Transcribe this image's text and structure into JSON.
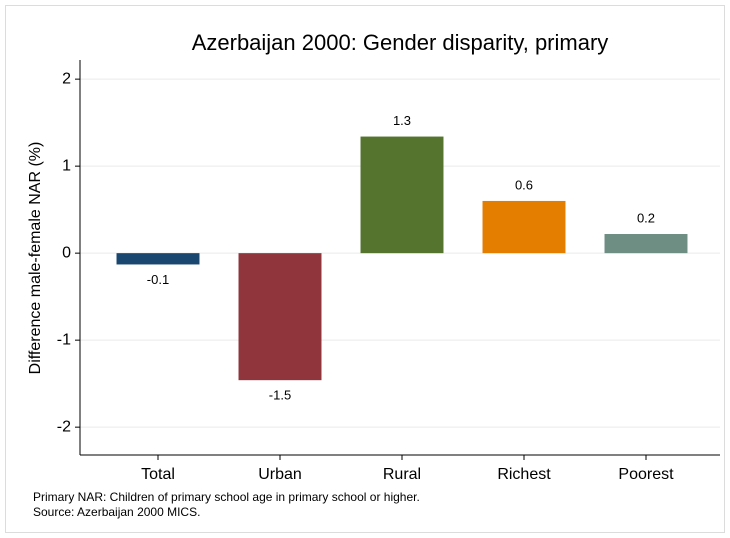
{
  "chart_data": {
    "type": "bar",
    "title": "Azerbaijan 2000: Gender disparity, primary",
    "y_label": "Difference male-female NAR (%)",
    "categories": [
      "Total",
      "Urban",
      "Rural",
      "Richest",
      "Poorest"
    ],
    "values": [
      -0.13,
      -1.46,
      1.34,
      0.6,
      0.22
    ],
    "value_labels": [
      "-0.1",
      "-1.5",
      "1.3",
      "0.6",
      "0.2"
    ],
    "colors": [
      "#1a476f",
      "#90353b",
      "#55752f",
      "#e37e00",
      "#6e8e84"
    ],
    "ylim": [
      -2.32,
      2.22
    ],
    "yticks": [
      -2,
      -1,
      0,
      1,
      2
    ],
    "grid": true,
    "notes": [
      "Primary NAR: Children of primary school age in primary school or higher.",
      "Source: Azerbaijan 2000 MICS."
    ]
  }
}
